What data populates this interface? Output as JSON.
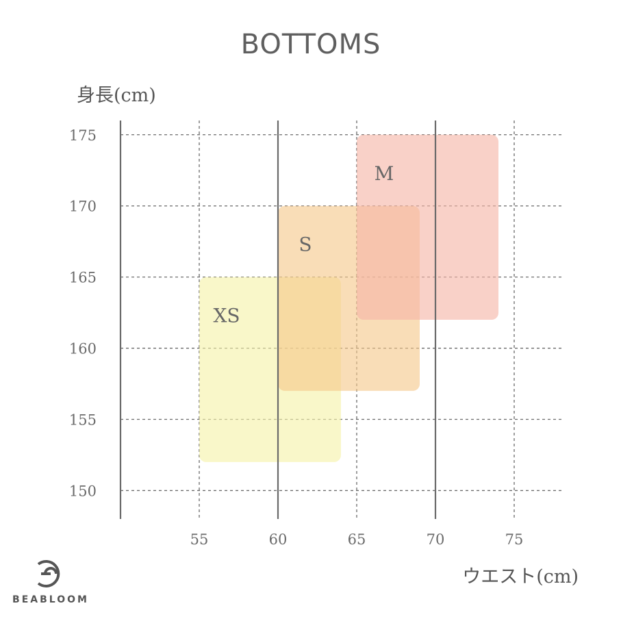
{
  "chart_data": {
    "type": "range-box",
    "title": "BOTTOMS",
    "xlabel": "ウエスト(cm)",
    "ylabel": "身長(cm)",
    "xlim": [
      50,
      78
    ],
    "ylim": [
      148,
      176
    ],
    "x_ticks": [
      55,
      60,
      65,
      70,
      75
    ],
    "y_ticks": [
      150,
      155,
      160,
      165,
      170,
      175
    ],
    "x_major": [
      50,
      60,
      70
    ],
    "grid": true,
    "boxes": [
      {
        "label": "XS",
        "waist": [
          55,
          64
        ],
        "height": [
          152,
          165
        ],
        "color": "#f6f2a8"
      },
      {
        "label": "S",
        "waist": [
          60,
          69
        ],
        "height": [
          157,
          170
        ],
        "color": "#f5c88a"
      },
      {
        "label": "M",
        "waist": [
          65,
          74
        ],
        "height": [
          162,
          175
        ],
        "color": "#f6b5a6"
      }
    ]
  },
  "brand": {
    "name": "BEABLOOM",
    "logo": "beabloom-logo-icon"
  }
}
